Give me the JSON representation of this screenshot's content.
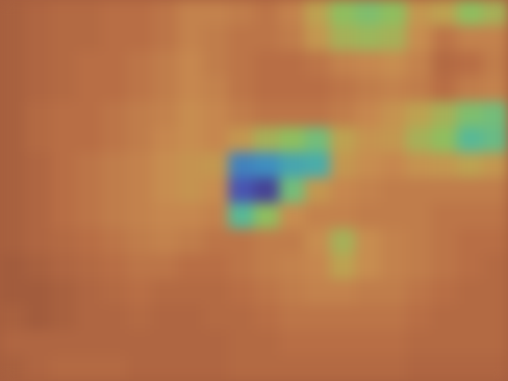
{
  "chart_data": {
    "type": "heatmap",
    "tick_labels": false,
    "zlim": [
      0,
      1
    ],
    "cells": [
      [
        0.85,
        0.82,
        0.8,
        0.8,
        0.78,
        0.78,
        0.75,
        0.7,
        0.7,
        0.72,
        0.75,
        0.7,
        0.55,
        0.45,
        0.42,
        0.45,
        0.6,
        0.55,
        0.45,
        0.5
      ],
      [
        0.85,
        0.82,
        0.8,
        0.8,
        0.78,
        0.78,
        0.75,
        0.7,
        0.72,
        0.75,
        0.75,
        0.72,
        0.6,
        0.5,
        0.48,
        0.5,
        0.65,
        0.75,
        0.7,
        0.7
      ],
      [
        0.85,
        0.82,
        0.8,
        0.78,
        0.78,
        0.75,
        0.72,
        0.68,
        0.72,
        0.75,
        0.78,
        0.78,
        0.75,
        0.7,
        0.68,
        0.65,
        0.7,
        0.8,
        0.78,
        0.72
      ],
      [
        0.85,
        0.82,
        0.8,
        0.78,
        0.78,
        0.75,
        0.72,
        0.68,
        0.7,
        0.75,
        0.78,
        0.78,
        0.78,
        0.75,
        0.72,
        0.7,
        0.72,
        0.78,
        0.72,
        0.7
      ],
      [
        0.85,
        0.8,
        0.78,
        0.78,
        0.75,
        0.72,
        0.7,
        0.65,
        0.68,
        0.72,
        0.75,
        0.75,
        0.75,
        0.72,
        0.68,
        0.62,
        0.55,
        0.5,
        0.42,
        0.4
      ],
      [
        0.85,
        0.8,
        0.78,
        0.78,
        0.75,
        0.72,
        0.68,
        0.65,
        0.68,
        0.6,
        0.5,
        0.45,
        0.4,
        0.55,
        0.62,
        0.6,
        0.5,
        0.45,
        0.35,
        0.38
      ],
      [
        0.85,
        0.82,
        0.78,
        0.75,
        0.72,
        0.7,
        0.65,
        0.62,
        0.6,
        0.2,
        0.22,
        0.28,
        0.3,
        0.6,
        0.65,
        0.68,
        0.62,
        0.6,
        0.55,
        0.6
      ],
      [
        0.85,
        0.82,
        0.78,
        0.75,
        0.72,
        0.7,
        0.65,
        0.62,
        0.65,
        0.12,
        0.08,
        0.4,
        0.6,
        0.68,
        0.7,
        0.72,
        0.72,
        0.72,
        0.72,
        0.72
      ],
      [
        0.85,
        0.82,
        0.78,
        0.75,
        0.72,
        0.7,
        0.68,
        0.68,
        0.7,
        0.35,
        0.45,
        0.65,
        0.7,
        0.7,
        0.72,
        0.72,
        0.72,
        0.75,
        0.75,
        0.75
      ],
      [
        0.85,
        0.82,
        0.8,
        0.78,
        0.75,
        0.72,
        0.7,
        0.72,
        0.75,
        0.75,
        0.72,
        0.72,
        0.65,
        0.5,
        0.65,
        0.7,
        0.72,
        0.75,
        0.78,
        0.78
      ],
      [
        0.88,
        0.85,
        0.82,
        0.8,
        0.78,
        0.75,
        0.75,
        0.78,
        0.78,
        0.75,
        0.72,
        0.7,
        0.68,
        0.55,
        0.65,
        0.7,
        0.72,
        0.75,
        0.78,
        0.8
      ],
      [
        0.88,
        0.88,
        0.85,
        0.82,
        0.8,
        0.78,
        0.8,
        0.8,
        0.8,
        0.78,
        0.75,
        0.72,
        0.7,
        0.7,
        0.72,
        0.72,
        0.75,
        0.78,
        0.8,
        0.8
      ],
      [
        0.85,
        0.88,
        0.85,
        0.82,
        0.82,
        0.8,
        0.82,
        0.82,
        0.8,
        0.8,
        0.78,
        0.75,
        0.75,
        0.75,
        0.75,
        0.75,
        0.78,
        0.8,
        0.8,
        0.8
      ],
      [
        0.82,
        0.82,
        0.82,
        0.82,
        0.82,
        0.82,
        0.82,
        0.82,
        0.82,
        0.8,
        0.8,
        0.78,
        0.78,
        0.78,
        0.78,
        0.78,
        0.8,
        0.8,
        0.8,
        0.8
      ],
      [
        0.85,
        0.82,
        0.8,
        0.8,
        0.8,
        0.82,
        0.82,
        0.82,
        0.82,
        0.8,
        0.8,
        0.8,
        0.8,
        0.8,
        0.8,
        0.8,
        0.82,
        0.82,
        0.82,
        0.82
      ]
    ]
  }
}
